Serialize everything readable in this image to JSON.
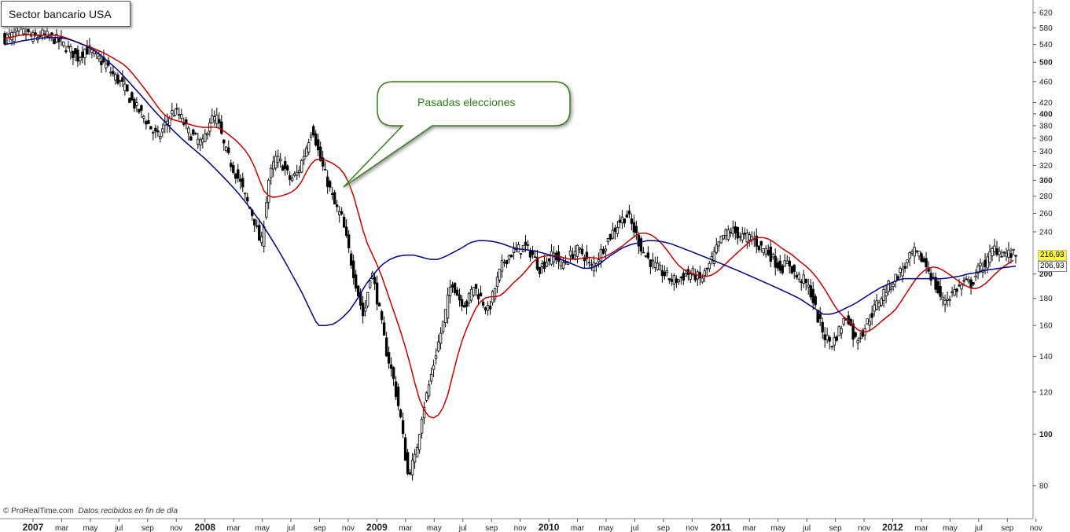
{
  "title": "Sector bancario USA",
  "footer": {
    "copyright": "© ProRealTime.com",
    "note": "Datos recibidos en fin de día"
  },
  "annotation": {
    "text": "Pasadas elecciones"
  },
  "colors": {
    "ma_fast": "#c00000",
    "ma_slow": "#000080",
    "candle": "#000000",
    "callout_border": "#3a7d1e",
    "price_badge": "#ffff33"
  },
  "chart_data": {
    "type": "candlestick",
    "y_scale": "log",
    "ylim": [
      75,
      640
    ],
    "y_ticks": [
      {
        "v": 620,
        "label": "620",
        "bold": false
      },
      {
        "v": 580,
        "label": "580",
        "bold": false
      },
      {
        "v": 540,
        "label": "540",
        "bold": false
      },
      {
        "v": 500,
        "label": "500",
        "bold": true
      },
      {
        "v": 460,
        "label": "460",
        "bold": false
      },
      {
        "v": 420,
        "label": "420",
        "bold": false
      },
      {
        "v": 400,
        "label": "400",
        "bold": true
      },
      {
        "v": 380,
        "label": "380",
        "bold": false
      },
      {
        "v": 360,
        "label": "360",
        "bold": false
      },
      {
        "v": 340,
        "label": "340",
        "bold": false
      },
      {
        "v": 320,
        "label": "320",
        "bold": false
      },
      {
        "v": 300,
        "label": "300",
        "bold": true
      },
      {
        "v": 280,
        "label": "280",
        "bold": false
      },
      {
        "v": 260,
        "label": "260",
        "bold": false
      },
      {
        "v": 240,
        "label": "240",
        "bold": false
      },
      {
        "v": 200,
        "label": "200",
        "bold": true
      },
      {
        "v": 180,
        "label": "180",
        "bold": false
      },
      {
        "v": 160,
        "label": "160",
        "bold": false
      },
      {
        "v": 140,
        "label": "140",
        "bold": false
      },
      {
        "v": 120,
        "label": "120",
        "bold": false
      },
      {
        "v": 100,
        "label": "100",
        "bold": true
      },
      {
        "v": 80,
        "label": "80",
        "bold": false
      }
    ],
    "x_ticks": [
      {
        "label": "2007",
        "bold": true
      },
      {
        "label": "mar"
      },
      {
        "label": "may"
      },
      {
        "label": "jul"
      },
      {
        "label": "sep"
      },
      {
        "label": "nov"
      },
      {
        "label": "2008",
        "bold": true
      },
      {
        "label": "mar"
      },
      {
        "label": "may"
      },
      {
        "label": "jul"
      },
      {
        "label": "sep"
      },
      {
        "label": "nov"
      },
      {
        "label": "2009",
        "bold": true
      },
      {
        "label": "mar"
      },
      {
        "label": "may"
      },
      {
        "label": "jul"
      },
      {
        "label": "sep"
      },
      {
        "label": "nov"
      },
      {
        "label": "2010",
        "bold": true
      },
      {
        "label": "mar"
      },
      {
        "label": "may"
      },
      {
        "label": "jul"
      },
      {
        "label": "sep"
      },
      {
        "label": "nov"
      },
      {
        "label": "2011",
        "bold": true
      },
      {
        "label": "mar"
      },
      {
        "label": "may"
      },
      {
        "label": "jul"
      },
      {
        "label": "sep"
      },
      {
        "label": "nov"
      },
      {
        "label": "2012",
        "bold": true
      },
      {
        "label": "mar"
      },
      {
        "label": "may"
      },
      {
        "label": "jul"
      },
      {
        "label": "sep"
      },
      {
        "label": "nov"
      }
    ],
    "last_values": {
      "price": "216,93",
      "ma_slow": "206,93"
    },
    "price_path": [
      555,
      560,
      572,
      566,
      555,
      565,
      558,
      552,
      540,
      525,
      510,
      530,
      520,
      505,
      490,
      470,
      455,
      430,
      410,
      395,
      375,
      360,
      385,
      405,
      395,
      370,
      360,
      350,
      390,
      392,
      345,
      320,
      300,
      275,
      255,
      225,
      300,
      330,
      320,
      300,
      310,
      340,
      380,
      330,
      300,
      270,
      255,
      220,
      190,
      165,
      205,
      175,
      145,
      128,
      108,
      84,
      90,
      110,
      125,
      145,
      165,
      195,
      180,
      175,
      190,
      180,
      170,
      190,
      210,
      218,
      222,
      225,
      218,
      205,
      212,
      218,
      208,
      215,
      222,
      218,
      205,
      215,
      228,
      240,
      252,
      258,
      240,
      222,
      212,
      205,
      200,
      195,
      195,
      200,
      200,
      195,
      205,
      220,
      235,
      242,
      238,
      234,
      235,
      225,
      222,
      212,
      205,
      210,
      198,
      195,
      185,
      165,
      152,
      148,
      158,
      168,
      150,
      155,
      165,
      175,
      185,
      192,
      200,
      208,
      220,
      215,
      205,
      190,
      178,
      182,
      188,
      192,
      192,
      205,
      210,
      224,
      220,
      218,
      216.93
    ],
    "ma_slow_path": [
      540,
      543,
      548,
      551,
      554,
      556,
      557,
      556,
      552,
      546,
      538,
      528,
      515,
      500,
      485,
      468,
      450,
      433,
      416,
      400,
      386,
      372,
      360,
      349,
      339,
      329,
      318,
      307,
      296,
      285,
      273,
      261,
      249,
      236,
      223,
      210,
      197,
      185,
      172,
      160,
      160,
      161,
      165,
      171,
      180,
      191,
      200,
      208,
      213,
      216,
      217,
      217,
      215,
      213,
      213,
      216,
      220,
      224,
      229,
      231,
      231,
      230,
      228,
      225,
      223,
      222,
      221,
      219,
      217,
      214,
      211,
      208,
      205,
      205,
      208,
      214,
      219,
      224,
      227,
      229,
      231,
      231,
      230,
      228,
      225,
      222,
      219,
      216,
      213,
      210,
      207,
      204,
      201,
      198,
      195,
      192,
      189,
      186,
      183,
      180,
      176,
      172,
      168,
      168,
      170,
      173,
      176,
      180,
      184,
      188,
      191,
      194,
      196,
      196,
      196,
      196,
      196,
      196,
      197,
      198,
      200,
      201,
      203,
      204,
      205,
      206,
      206.93
    ]
  }
}
